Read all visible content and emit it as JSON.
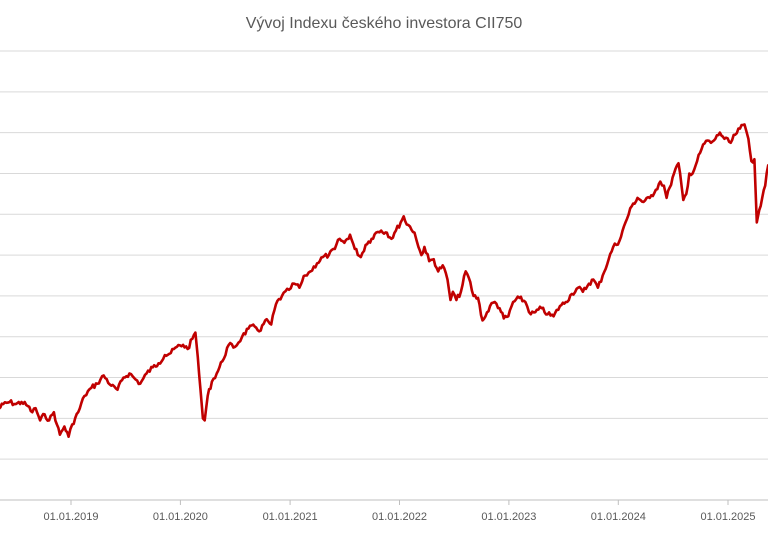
{
  "chart_data": {
    "type": "line",
    "title": "Vývoj Indexu českého investora CII750",
    "xlabel": "",
    "ylabel": "",
    "grid": true,
    "legend": "none",
    "x_ticks": [
      "01.01.2019",
      "01.01.2020",
      "01.01.2021",
      "01.01.2022",
      "01.01.2023",
      "01.01.2024",
      "01.01.2025"
    ],
    "ylim": [
      0,
      11
    ],
    "series": [
      {
        "color": "#C00000",
        "points": [
          [
            "2018-05-01",
            2.2
          ],
          [
            "2018-05-20",
            2.35
          ],
          [
            "2018-06-10",
            2.4
          ],
          [
            "2018-07-01",
            2.35
          ],
          [
            "2018-07-20",
            2.4
          ],
          [
            "2018-08-10",
            2.3
          ],
          [
            "2018-08-25",
            2.15
          ],
          [
            "2018-09-05",
            2.25
          ],
          [
            "2018-09-20",
            1.95
          ],
          [
            "2018-10-05",
            2.1
          ],
          [
            "2018-10-20",
            1.95
          ],
          [
            "2018-11-05",
            2.15
          ],
          [
            "2018-11-15",
            1.85
          ],
          [
            "2018-11-25",
            1.6
          ],
          [
            "2018-12-10",
            1.8
          ],
          [
            "2018-12-24",
            1.55
          ],
          [
            "2019-01-05",
            1.85
          ],
          [
            "2019-01-25",
            2.15
          ],
          [
            "2019-02-15",
            2.55
          ],
          [
            "2019-03-10",
            2.75
          ],
          [
            "2019-03-30",
            2.85
          ],
          [
            "2019-04-20",
            3.05
          ],
          [
            "2019-05-15",
            2.8
          ],
          [
            "2019-06-05",
            2.7
          ],
          [
            "2019-06-25",
            3.0
          ],
          [
            "2019-07-15",
            3.1
          ],
          [
            "2019-08-05",
            2.95
          ],
          [
            "2019-08-20",
            2.85
          ],
          [
            "2019-09-10",
            3.1
          ],
          [
            "2019-10-01",
            3.25
          ],
          [
            "2019-10-20",
            3.35
          ],
          [
            "2019-11-10",
            3.55
          ],
          [
            "2019-11-30",
            3.6
          ],
          [
            "2019-12-20",
            3.75
          ],
          [
            "2020-01-10",
            3.8
          ],
          [
            "2020-01-25",
            3.7
          ],
          [
            "2020-02-10",
            3.95
          ],
          [
            "2020-02-20",
            4.1
          ],
          [
            "2020-02-28",
            3.5
          ],
          [
            "2020-03-08",
            2.7
          ],
          [
            "2020-03-16",
            2.0
          ],
          [
            "2020-03-22",
            1.95
          ],
          [
            "2020-04-01",
            2.55
          ],
          [
            "2020-04-15",
            2.9
          ],
          [
            "2020-05-01",
            3.1
          ],
          [
            "2020-05-20",
            3.4
          ],
          [
            "2020-06-10",
            3.8
          ],
          [
            "2020-07-01",
            3.75
          ],
          [
            "2020-07-25",
            4.0
          ],
          [
            "2020-08-15",
            4.2
          ],
          [
            "2020-09-05",
            4.25
          ],
          [
            "2020-09-25",
            4.15
          ],
          [
            "2020-10-10",
            4.4
          ],
          [
            "2020-10-30",
            4.3
          ],
          [
            "2020-11-15",
            4.8
          ],
          [
            "2020-12-05",
            5.0
          ],
          [
            "2020-12-28",
            5.15
          ],
          [
            "2021-01-15",
            5.3
          ],
          [
            "2021-02-01",
            5.2
          ],
          [
            "2021-02-20",
            5.5
          ],
          [
            "2021-03-10",
            5.6
          ],
          [
            "2021-04-01",
            5.8
          ],
          [
            "2021-04-20",
            5.95
          ],
          [
            "2021-05-10",
            6.0
          ],
          [
            "2021-05-30",
            6.15
          ],
          [
            "2021-06-15",
            6.4
          ],
          [
            "2021-07-01",
            6.3
          ],
          [
            "2021-07-20",
            6.5
          ],
          [
            "2021-08-05",
            6.15
          ],
          [
            "2021-08-25",
            5.95
          ],
          [
            "2021-09-10",
            6.25
          ],
          [
            "2021-09-30",
            6.4
          ],
          [
            "2021-10-15",
            6.55
          ],
          [
            "2021-11-01",
            6.6
          ],
          [
            "2021-11-20",
            6.55
          ],
          [
            "2021-12-05",
            6.4
          ],
          [
            "2021-12-20",
            6.6
          ],
          [
            "2022-01-05",
            6.8
          ],
          [
            "2022-01-15",
            6.95
          ],
          [
            "2022-01-25",
            6.75
          ],
          [
            "2022-02-05",
            6.7
          ],
          [
            "2022-02-20",
            6.55
          ],
          [
            "2022-03-05",
            6.2
          ],
          [
            "2022-03-15",
            6.0
          ],
          [
            "2022-03-25",
            6.2
          ],
          [
            "2022-04-10",
            5.85
          ],
          [
            "2022-04-25",
            5.9
          ],
          [
            "2022-05-10",
            5.6
          ],
          [
            "2022-05-25",
            5.75
          ],
          [
            "2022-06-10",
            5.4
          ],
          [
            "2022-06-20",
            4.9
          ],
          [
            "2022-06-28",
            5.1
          ],
          [
            "2022-07-10",
            4.9
          ],
          [
            "2022-07-25",
            5.1
          ],
          [
            "2022-08-10",
            5.6
          ],
          [
            "2022-08-20",
            5.45
          ],
          [
            "2022-09-05",
            5.0
          ],
          [
            "2022-09-20",
            4.95
          ],
          [
            "2022-10-05",
            4.4
          ],
          [
            "2022-10-15",
            4.5
          ],
          [
            "2022-10-30",
            4.75
          ],
          [
            "2022-11-15",
            4.85
          ],
          [
            "2022-12-01",
            4.7
          ],
          [
            "2022-12-15",
            4.45
          ],
          [
            "2022-12-30",
            4.5
          ],
          [
            "2023-01-15",
            4.85
          ],
          [
            "2023-02-05",
            4.95
          ],
          [
            "2023-02-25",
            4.85
          ],
          [
            "2023-03-15",
            4.55
          ],
          [
            "2023-03-30",
            4.6
          ],
          [
            "2023-04-20",
            4.7
          ],
          [
            "2023-05-10",
            4.55
          ],
          [
            "2023-05-30",
            4.5
          ],
          [
            "2023-06-20",
            4.75
          ],
          [
            "2023-07-10",
            4.85
          ],
          [
            "2023-07-30",
            5.05
          ],
          [
            "2023-08-20",
            5.2
          ],
          [
            "2023-09-05",
            5.1
          ],
          [
            "2023-09-25",
            5.3
          ],
          [
            "2023-10-10",
            5.4
          ],
          [
            "2023-10-25",
            5.2
          ],
          [
            "2023-11-10",
            5.5
          ],
          [
            "2023-11-30",
            5.9
          ],
          [
            "2023-12-15",
            6.2
          ],
          [
            "2024-01-05",
            6.35
          ],
          [
            "2024-01-25",
            6.8
          ],
          [
            "2024-02-15",
            7.2
          ],
          [
            "2024-03-05",
            7.4
          ],
          [
            "2024-03-25",
            7.3
          ],
          [
            "2024-04-15",
            7.4
          ],
          [
            "2024-05-05",
            7.6
          ],
          [
            "2024-05-20",
            7.8
          ],
          [
            "2024-06-01",
            7.7
          ],
          [
            "2024-06-10",
            7.4
          ],
          [
            "2024-06-20",
            7.65
          ],
          [
            "2024-07-05",
            8.0
          ],
          [
            "2024-07-20",
            8.25
          ],
          [
            "2024-08-05",
            7.35
          ],
          [
            "2024-08-15",
            7.5
          ],
          [
            "2024-08-25",
            8.0
          ],
          [
            "2024-09-05",
            8.0
          ],
          [
            "2024-09-20",
            8.3
          ],
          [
            "2024-10-05",
            8.6
          ],
          [
            "2024-10-20",
            8.8
          ],
          [
            "2024-11-05",
            8.75
          ],
          [
            "2024-11-20",
            8.85
          ],
          [
            "2024-12-05",
            9.0
          ],
          [
            "2024-12-20",
            8.85
          ],
          [
            "2025-01-10",
            8.75
          ],
          [
            "2025-01-25",
            8.95
          ],
          [
            "2025-02-10",
            9.1
          ],
          [
            "2025-02-25",
            9.2
          ],
          [
            "2025-03-10",
            8.85
          ],
          [
            "2025-03-20",
            8.3
          ],
          [
            "2025-03-30",
            8.35
          ],
          [
            "2025-04-07",
            6.8
          ],
          [
            "2025-04-15",
            7.1
          ],
          [
            "2025-04-25",
            7.4
          ],
          [
            "2025-05-05",
            7.7
          ],
          [
            "2025-05-15",
            8.2
          ],
          [
            "2025-05-25",
            8.2
          ]
        ]
      }
    ]
  }
}
